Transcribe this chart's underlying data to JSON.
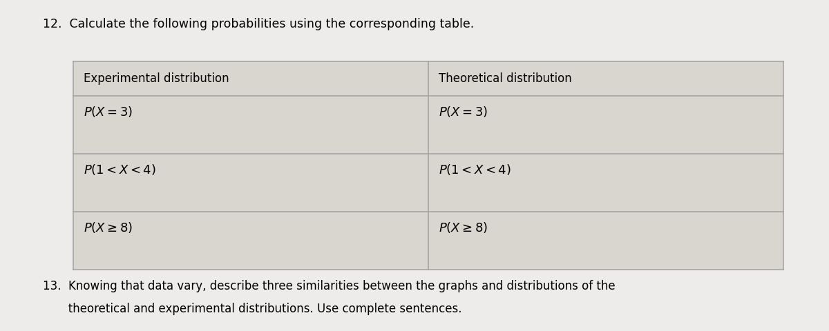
{
  "title": "12.  Calculate the following probabilities using the corresponding table.",
  "col_headers": [
    "Experimental distribution",
    "Theoretical distribution"
  ],
  "rows": [
    [
      "$P(X = 3)$",
      "$P(X = 3)$"
    ],
    [
      "$P(1 < X < 4)$",
      "$P(1 < X < 4)$"
    ],
    [
      "$P(X \\geq 8)$",
      "$P(X \\geq 8)$"
    ]
  ],
  "footer_line1": "13.  Knowing that data vary, describe three similarities between the graphs and distributions of the",
  "footer_line2": "       theoretical and experimental distributions. Use complete sentences.",
  "bg_color": "#edecea",
  "table_bg": "#d9d6d0",
  "border_color": "#a0a0a0",
  "title_fontsize": 12.5,
  "header_fontsize": 12,
  "cell_fontsize": 13,
  "footer_fontsize": 12,
  "col_split": 0.5
}
